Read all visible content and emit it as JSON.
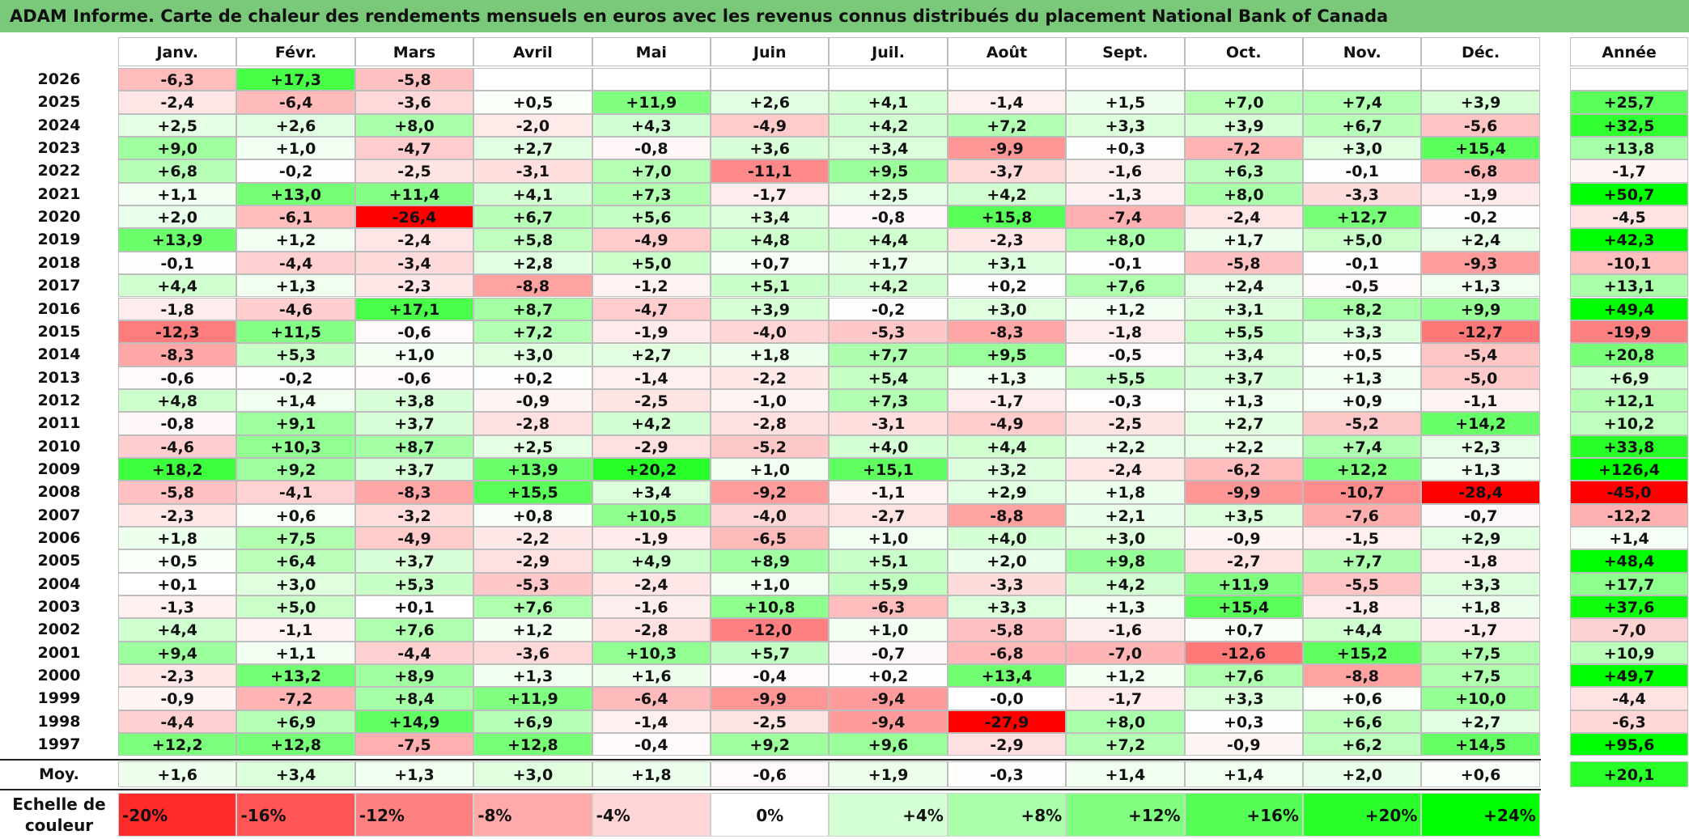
{
  "title": "ADAM Informe. Carte de chaleur des rendements mensuels en euros avec les revenus connus distribués du placement National Bank of Canada",
  "colors": {
    "title_bg": "#7ac97a",
    "neg_max": "#ff0000",
    "neutral": "#ffffff",
    "pos_max": "#00ff00"
  },
  "chart_data": {
    "type": "heatmap",
    "months": [
      "Janv.",
      "Févr.",
      "Mars",
      "Avril",
      "Mai",
      "Juin",
      "Juil.",
      "Août",
      "Sept.",
      "Oct.",
      "Nov.",
      "Déc."
    ],
    "year_header": "Année",
    "rows": [
      {
        "year": "2026",
        "values": [
          "-6,3",
          "+17,3",
          "-5,8",
          "",
          "",
          "",
          "",
          "",
          "",
          "",
          "",
          ""
        ],
        "annual": ""
      },
      {
        "year": "2025",
        "values": [
          "-2,4",
          "-6,4",
          "-3,6",
          "+0,5",
          "+11,9",
          "+2,6",
          "+4,1",
          "-1,4",
          "+1,5",
          "+7,0",
          "+7,4",
          "+3,9"
        ],
        "annual": "+25,7"
      },
      {
        "year": "2024",
        "values": [
          "+2,5",
          "+2,6",
          "+8,0",
          "-2,0",
          "+4,3",
          "-4,9",
          "+4,2",
          "+7,2",
          "+3,3",
          "+3,9",
          "+6,7",
          "-5,6"
        ],
        "annual": "+32,5"
      },
      {
        "year": "2023",
        "values": [
          "+9,0",
          "+1,0",
          "-4,7",
          "+2,7",
          "-0,8",
          "+3,6",
          "+3,4",
          "-9,9",
          "+0,3",
          "-7,2",
          "+3,0",
          "+15,4"
        ],
        "annual": "+13,8"
      },
      {
        "year": "2022",
        "values": [
          "+6,8",
          "-0,2",
          "-2,5",
          "-3,1",
          "+7,0",
          "-11,1",
          "+9,5",
          "-3,7",
          "-1,6",
          "+6,3",
          "-0,1",
          "-6,8"
        ],
        "annual": "-1,7"
      },
      {
        "year": "2021",
        "values": [
          "+1,1",
          "+13,0",
          "+11,4",
          "+4,1",
          "+7,3",
          "-1,7",
          "+2,5",
          "+4,2",
          "-1,3",
          "+8,0",
          "-3,3",
          "-1,9"
        ],
        "annual": "+50,7"
      },
      {
        "year": "2020",
        "values": [
          "+2,0",
          "-6,1",
          "-26,4",
          "+6,7",
          "+5,6",
          "+3,4",
          "-0,8",
          "+15,8",
          "-7,4",
          "-2,4",
          "+12,7",
          "-0,2"
        ],
        "annual": "-4,5"
      },
      {
        "year": "2019",
        "values": [
          "+13,9",
          "+1,2",
          "-2,4",
          "+5,8",
          "-4,9",
          "+4,8",
          "+4,4",
          "-2,3",
          "+8,0",
          "+1,7",
          "+5,0",
          "+2,4"
        ],
        "annual": "+42,3"
      },
      {
        "year": "2018",
        "values": [
          "-0,1",
          "-4,4",
          "-3,4",
          "+2,8",
          "+5,0",
          "+0,7",
          "+1,7",
          "+3,1",
          "-0,1",
          "-5,8",
          "-0,1",
          "-9,3"
        ],
        "annual": "-10,1"
      },
      {
        "year": "2017",
        "values": [
          "+4,4",
          "+1,3",
          "-2,3",
          "-8,8",
          "-1,2",
          "+5,1",
          "+4,2",
          "+0,2",
          "+7,6",
          "+2,4",
          "-0,5",
          "+1,3"
        ],
        "annual": "+13,1"
      },
      {
        "year": "2016",
        "values": [
          "-1,8",
          "-4,6",
          "+17,1",
          "+8,7",
          "-4,7",
          "+3,9",
          "-0,2",
          "+3,0",
          "+1,2",
          "+3,1",
          "+8,2",
          "+9,9"
        ],
        "annual": "+49,4"
      },
      {
        "year": "2015",
        "values": [
          "-12,3",
          "+11,5",
          "-0,6",
          "+7,2",
          "-1,9",
          "-4,0",
          "-5,3",
          "-8,3",
          "-1,8",
          "+5,5",
          "+3,3",
          "-12,7"
        ],
        "annual": "-19,9"
      },
      {
        "year": "2014",
        "values": [
          "-8,3",
          "+5,3",
          "+1,0",
          "+3,0",
          "+2,7",
          "+1,8",
          "+7,7",
          "+9,5",
          "-0,5",
          "+3,4",
          "+0,5",
          "-5,4"
        ],
        "annual": "+20,8"
      },
      {
        "year": "2013",
        "values": [
          "-0,6",
          "-0,2",
          "-0,6",
          "+0,2",
          "-1,4",
          "-2,2",
          "+5,4",
          "+1,3",
          "+5,5",
          "+3,7",
          "+1,3",
          "-5,0"
        ],
        "annual": "+6,9"
      },
      {
        "year": "2012",
        "values": [
          "+4,8",
          "+1,4",
          "+3,8",
          "-0,9",
          "-2,5",
          "-1,0",
          "+7,3",
          "-1,7",
          "-0,3",
          "+1,3",
          "+0,9",
          "-1,1"
        ],
        "annual": "+12,1"
      },
      {
        "year": "2011",
        "values": [
          "-0,8",
          "+9,1",
          "+3,7",
          "-2,8",
          "+4,2",
          "-2,8",
          "-3,1",
          "-4,9",
          "-2,5",
          "+2,7",
          "-5,2",
          "+14,2"
        ],
        "annual": "+10,2"
      },
      {
        "year": "2010",
        "values": [
          "-4,6",
          "+10,3",
          "+8,7",
          "+2,5",
          "-2,9",
          "-5,2",
          "+4,0",
          "+4,4",
          "+2,2",
          "+2,2",
          "+7,4",
          "+2,3"
        ],
        "annual": "+33,8"
      },
      {
        "year": "2009",
        "values": [
          "+18,2",
          "+9,2",
          "+3,7",
          "+13,9",
          "+20,2",
          "+1,0",
          "+15,1",
          "+3,2",
          "-2,4",
          "-6,2",
          "+12,2",
          "+1,3"
        ],
        "annual": "+126,4"
      },
      {
        "year": "2008",
        "values": [
          "-5,8",
          "-4,1",
          "-8,3",
          "+15,5",
          "+3,4",
          "-9,2",
          "-1,1",
          "+2,9",
          "+1,8",
          "-9,9",
          "-10,7",
          "-28,4"
        ],
        "annual": "-45,0"
      },
      {
        "year": "2007",
        "values": [
          "-2,3",
          "+0,6",
          "-3,2",
          "+0,8",
          "+10,5",
          "-4,0",
          "-2,7",
          "-8,8",
          "+2,1",
          "+3,5",
          "-7,6",
          "-0,7"
        ],
        "annual": "-12,2"
      },
      {
        "year": "2006",
        "values": [
          "+1,8",
          "+7,5",
          "-4,9",
          "-2,2",
          "-1,9",
          "-6,5",
          "+1,0",
          "+4,0",
          "+3,0",
          "-0,9",
          "-1,5",
          "+2,9"
        ],
        "annual": "+1,4"
      },
      {
        "year": "2005",
        "values": [
          "+0,5",
          "+6,4",
          "+3,7",
          "-2,9",
          "+4,9",
          "+8,9",
          "+5,1",
          "+2,0",
          "+9,8",
          "-2,7",
          "+7,7",
          "-1,8"
        ],
        "annual": "+48,4"
      },
      {
        "year": "2004",
        "values": [
          "+0,1",
          "+3,0",
          "+5,3",
          "-5,3",
          "-2,4",
          "+1,0",
          "+5,9",
          "-3,3",
          "+4,2",
          "+11,9",
          "-5,5",
          "+3,3"
        ],
        "annual": "+17,7"
      },
      {
        "year": "2003",
        "values": [
          "-1,3",
          "+5,0",
          "+0,1",
          "+7,6",
          "-1,6",
          "+10,8",
          "-6,3",
          "+3,3",
          "+1,3",
          "+15,4",
          "-1,8",
          "+1,8"
        ],
        "annual": "+37,6"
      },
      {
        "year": "2002",
        "values": [
          "+4,4",
          "-1,1",
          "+7,6",
          "+1,2",
          "-2,8",
          "-12,0",
          "+1,0",
          "-5,8",
          "-1,6",
          "+0,7",
          "+4,4",
          "-1,7"
        ],
        "annual": "-7,0"
      },
      {
        "year": "2001",
        "values": [
          "+9,4",
          "+1,1",
          "-4,4",
          "-3,6",
          "+10,3",
          "+5,7",
          "-0,7",
          "-6,8",
          "-7,0",
          "-12,6",
          "+15,2",
          "+7,5"
        ],
        "annual": "+10,9"
      },
      {
        "year": "2000",
        "values": [
          "-2,3",
          "+13,2",
          "+8,9",
          "+1,3",
          "+1,6",
          "-0,4",
          "+0,2",
          "+13,4",
          "+1,2",
          "+7,6",
          "-8,8",
          "+7,5"
        ],
        "annual": "+49,7"
      },
      {
        "year": "1999",
        "values": [
          "-0,9",
          "-7,2",
          "+8,4",
          "+11,9",
          "-6,4",
          "-9,9",
          "-9,4",
          "-0,0",
          "-1,7",
          "+3,3",
          "+0,6",
          "+10,0"
        ],
        "annual": "-4,4"
      },
      {
        "year": "1998",
        "values": [
          "-4,4",
          "+6,9",
          "+14,9",
          "+6,9",
          "-1,4",
          "-2,5",
          "-9,4",
          "-27,9",
          "+8,0",
          "+0,3",
          "+6,6",
          "+2,7"
        ],
        "annual": "-6,3"
      },
      {
        "year": "1997",
        "values": [
          "+12,2",
          "+12,8",
          "-7,5",
          "+12,8",
          "-0,4",
          "+9,2",
          "+9,6",
          "-2,9",
          "+7,2",
          "-0,9",
          "+6,2",
          "+14,5"
        ],
        "annual": "+95,6"
      }
    ],
    "average": {
      "label": "Moy.",
      "values": [
        "+1,6",
        "+3,4",
        "+1,3",
        "+3,0",
        "+1,8",
        "-0,6",
        "+1,9",
        "-0,3",
        "+1,4",
        "+1,4",
        "+2,0",
        "+0,6"
      ],
      "annual": "+20,1"
    },
    "scale": {
      "label_line1": "Echelle de",
      "label_line2": "couleur",
      "steps": [
        {
          "label": "-20%",
          "value": -20
        },
        {
          "label": "-16%",
          "value": -16
        },
        {
          "label": "-12%",
          "value": -12
        },
        {
          "label": "-8%",
          "value": -8
        },
        {
          "label": "-4%",
          "value": -4
        },
        {
          "label": "0%",
          "value": 0
        },
        {
          "label": "+4%",
          "value": 4
        },
        {
          "label": "+8%",
          "value": 8
        },
        {
          "label": "+12%",
          "value": 12
        },
        {
          "label": "+16%",
          "value": 16
        },
        {
          "label": "+20%",
          "value": 20
        },
        {
          "label": "+24%",
          "value": 24
        }
      ]
    }
  }
}
